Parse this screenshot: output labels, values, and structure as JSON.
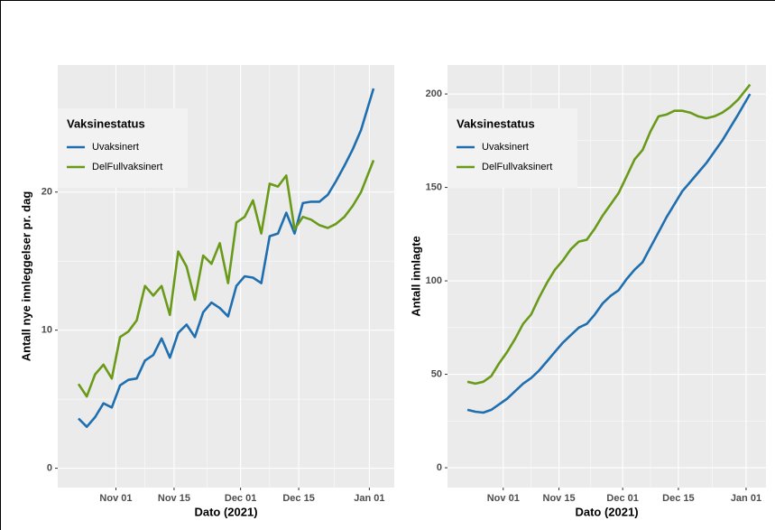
{
  "chart_data": [
    {
      "type": "line",
      "xlabel": "Dato (2021)",
      "ylabel": "Antall nye innleggelser pr. dag",
      "legend_title": "Vaksinestatus",
      "legend": "top-left",
      "grid": true,
      "x": [
        "2021-10-23",
        "2021-10-25",
        "2021-10-27",
        "2021-10-29",
        "2021-10-31",
        "2021-11-02",
        "2021-11-04",
        "2021-11-06",
        "2021-11-08",
        "2021-11-10",
        "2021-11-12",
        "2021-11-14",
        "2021-11-16",
        "2021-11-18",
        "2021-11-20",
        "2021-11-22",
        "2021-11-24",
        "2021-11-26",
        "2021-11-28",
        "2021-11-30",
        "2021-12-02",
        "2021-12-04",
        "2021-12-06",
        "2021-12-08",
        "2021-12-10",
        "2021-12-12",
        "2021-12-14",
        "2021-12-16",
        "2021-12-18",
        "2021-12-20",
        "2021-12-22",
        "2021-12-24",
        "2021-12-26",
        "2021-12-28",
        "2021-12-30",
        "2022-01-02"
      ],
      "series": [
        {
          "name": "Uvaksinert",
          "color": "#1f6fb0",
          "values": [
            3.6,
            3.0,
            3.7,
            4.7,
            4.4,
            6.0,
            6.4,
            6.5,
            7.8,
            8.2,
            9.4,
            8.0,
            9.8,
            10.4,
            9.5,
            11.3,
            12.0,
            11.6,
            11.0,
            13.2,
            13.9,
            13.8,
            13.4,
            16.8,
            17.0,
            18.5,
            17.0,
            19.2,
            19.3,
            19.3,
            19.8,
            20.8,
            21.9,
            23.1,
            24.5,
            27.5
          ]
        },
        {
          "name": "DelFullvaksinert",
          "color": "#6a9a1a",
          "values": [
            6.1,
            5.2,
            6.8,
            7.5,
            6.5,
            9.5,
            9.9,
            10.7,
            13.2,
            12.5,
            13.2,
            11.1,
            15.7,
            14.6,
            12.2,
            15.4,
            14.8,
            16.3,
            13.4,
            17.8,
            18.2,
            19.4,
            17.0,
            20.6,
            20.4,
            21.2,
            17.3,
            18.2,
            18.0,
            17.6,
            17.4,
            17.7,
            18.2,
            19.0,
            20.0,
            22.3
          ]
        }
      ],
      "xlim": [
        "2021-10-18",
        "2022-01-07"
      ],
      "ylim": [
        -1.4,
        29.2
      ],
      "xticks": [
        {
          "value": "2021-11-01",
          "label": "Nov 01"
        },
        {
          "value": "2021-11-15",
          "label": "Nov 15"
        },
        {
          "value": "2021-12-01",
          "label": "Dec 01"
        },
        {
          "value": "2021-12-15",
          "label": "Dec 15"
        },
        {
          "value": "2022-01-01",
          "label": "Jan 01"
        }
      ],
      "yticks": [
        0,
        10,
        20
      ]
    },
    {
      "type": "line",
      "xlabel": "Dato (2021)",
      "ylabel": "Antall innlagte",
      "legend_title": "Vaksinestatus",
      "legend": "top-left",
      "grid": true,
      "x": [
        "2021-10-23",
        "2021-10-25",
        "2021-10-27",
        "2021-10-29",
        "2021-10-31",
        "2021-11-02",
        "2021-11-04",
        "2021-11-06",
        "2021-11-08",
        "2021-11-10",
        "2021-11-12",
        "2021-11-14",
        "2021-11-16",
        "2021-11-18",
        "2021-11-20",
        "2021-11-22",
        "2021-11-24",
        "2021-11-26",
        "2021-11-28",
        "2021-11-30",
        "2021-12-02",
        "2021-12-04",
        "2021-12-06",
        "2021-12-08",
        "2021-12-10",
        "2021-12-12",
        "2021-12-14",
        "2021-12-16",
        "2021-12-18",
        "2021-12-20",
        "2021-12-22",
        "2021-12-24",
        "2021-12-26",
        "2021-12-28",
        "2021-12-30",
        "2022-01-02"
      ],
      "series": [
        {
          "name": "Uvaksinert",
          "color": "#1f6fb0",
          "values": [
            31,
            30,
            29.5,
            31,
            34,
            37,
            41,
            45,
            48,
            52,
            57,
            62,
            67,
            71,
            75,
            77,
            82,
            88,
            92,
            95,
            101,
            106,
            110,
            118,
            126,
            134,
            141,
            148,
            153,
            158,
            163,
            169,
            175,
            182,
            189,
            200
          ]
        },
        {
          "name": "DelFullvaksinert",
          "color": "#6a9a1a",
          "values": [
            46,
            45,
            46,
            49,
            56,
            62,
            69,
            77,
            82,
            91,
            99,
            106,
            111,
            117,
            121,
            122,
            128,
            135,
            141,
            147,
            156,
            165,
            170,
            180,
            188,
            189,
            191,
            191,
            190,
            188,
            187,
            188,
            190,
            193,
            197,
            205
          ]
        }
      ],
      "xlim": [
        "2021-10-18",
        "2022-01-06"
      ],
      "ylim": [
        -10.6,
        215.5
      ],
      "xticks": [
        {
          "value": "2021-11-01",
          "label": "Nov 01"
        },
        {
          "value": "2021-11-15",
          "label": "Nov 15"
        },
        {
          "value": "2021-12-01",
          "label": "Dec 01"
        },
        {
          "value": "2021-12-15",
          "label": "Dec 15"
        },
        {
          "value": "2022-01-01",
          "label": "Jan 01"
        }
      ],
      "yticks": [
        0,
        50,
        100,
        150,
        200
      ]
    }
  ]
}
